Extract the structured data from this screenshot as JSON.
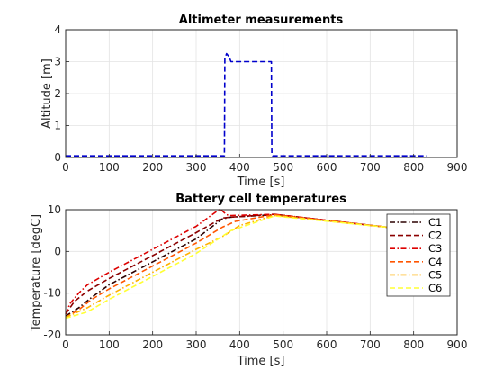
{
  "colors": {
    "altitude": "#0000cc",
    "C1": "#2b0000",
    "C2": "#8b0000",
    "C3": "#dd0000",
    "C4": "#ff5500",
    "C5": "#ffb000",
    "C6": "#ffff33",
    "grid": "#e3e3e3",
    "axis": "#262626"
  },
  "chart_data": [
    {
      "type": "line",
      "title": "Altimeter measurements",
      "xlabel": "Time [s]",
      "ylabel": "Altitude [m]",
      "xlim": [
        0,
        900
      ],
      "ylim": [
        0,
        4
      ],
      "xticks": [
        "0",
        "100",
        "200",
        "300",
        "400",
        "500",
        "600",
        "700",
        "800",
        "900"
      ],
      "yticks": [
        "0",
        "1",
        "2",
        "3",
        "4"
      ],
      "grid": true,
      "series": [
        {
          "line_style": "dashed",
          "x": [
            0,
            365,
            366,
            370,
            376,
            380,
            385,
            473,
            474,
            476,
            830
          ],
          "y": [
            0.05,
            0.05,
            3.1,
            3.25,
            3.15,
            3.0,
            3.0,
            3.0,
            0.1,
            0.05,
            0.05
          ]
        }
      ]
    },
    {
      "type": "line",
      "title": "Battery cell temperatures",
      "xlabel": "Time [s]",
      "ylabel": "Temperature [degC]",
      "xlim": [
        0,
        900
      ],
      "ylim": [
        -20,
        10
      ],
      "xticks": [
        "0",
        "100",
        "200",
        "300",
        "400",
        "500",
        "600",
        "700",
        "800",
        "900"
      ],
      "yticks": [
        "-20",
        "-10",
        "0",
        "10"
      ],
      "grid": true,
      "legend": "top-right",
      "series": [
        {
          "name": "C1",
          "line_style": "dash-dot",
          "x": [
            0,
            30,
            60,
            100,
            200,
            300,
            360,
            380,
            480,
            740
          ],
          "y": [
            -15.5,
            -13.5,
            -11,
            -8,
            -2.5,
            3,
            7.8,
            8.2,
            8.8,
            5.8
          ]
        },
        {
          "name": "C2",
          "line_style": "dashed",
          "x": [
            0,
            20,
            50,
            100,
            200,
            300,
            360,
            380,
            480,
            740
          ],
          "y": [
            -15,
            -12,
            -9.5,
            -6.5,
            -1,
            4.5,
            8,
            8.2,
            8.9,
            5.8
          ]
        },
        {
          "name": "C3",
          "line_style": "dash-dot",
          "x": [
            0,
            10,
            30,
            50,
            100,
            200,
            300,
            355,
            370,
            380,
            480,
            740
          ],
          "y": [
            -15,
            -12.5,
            -10,
            -8,
            -5,
            0.5,
            6,
            10.2,
            8.8,
            8.6,
            8.9,
            5.8
          ]
        },
        {
          "name": "C4",
          "line_style": "dashed",
          "x": [
            0,
            30,
            60,
            100,
            200,
            300,
            360,
            390,
            480,
            740
          ],
          "y": [
            -15.8,
            -14,
            -11.5,
            -9,
            -3.5,
            2,
            5.8,
            7.2,
            8.8,
            5.8
          ]
        },
        {
          "name": "C5",
          "line_style": "dash-dot",
          "x": [
            0,
            50,
            100,
            200,
            300,
            360,
            400,
            480,
            740
          ],
          "y": [
            -15.8,
            -13.5,
            -10.5,
            -5,
            0.5,
            3.5,
            6.2,
            8.6,
            5.8
          ]
        },
        {
          "name": "C6",
          "line_style": "dashed",
          "x": [
            0,
            50,
            100,
            200,
            300,
            380,
            480,
            740
          ],
          "y": [
            -16,
            -14.5,
            -11.5,
            -6,
            -0.5,
            5,
            8.5,
            5.8
          ]
        }
      ]
    }
  ]
}
